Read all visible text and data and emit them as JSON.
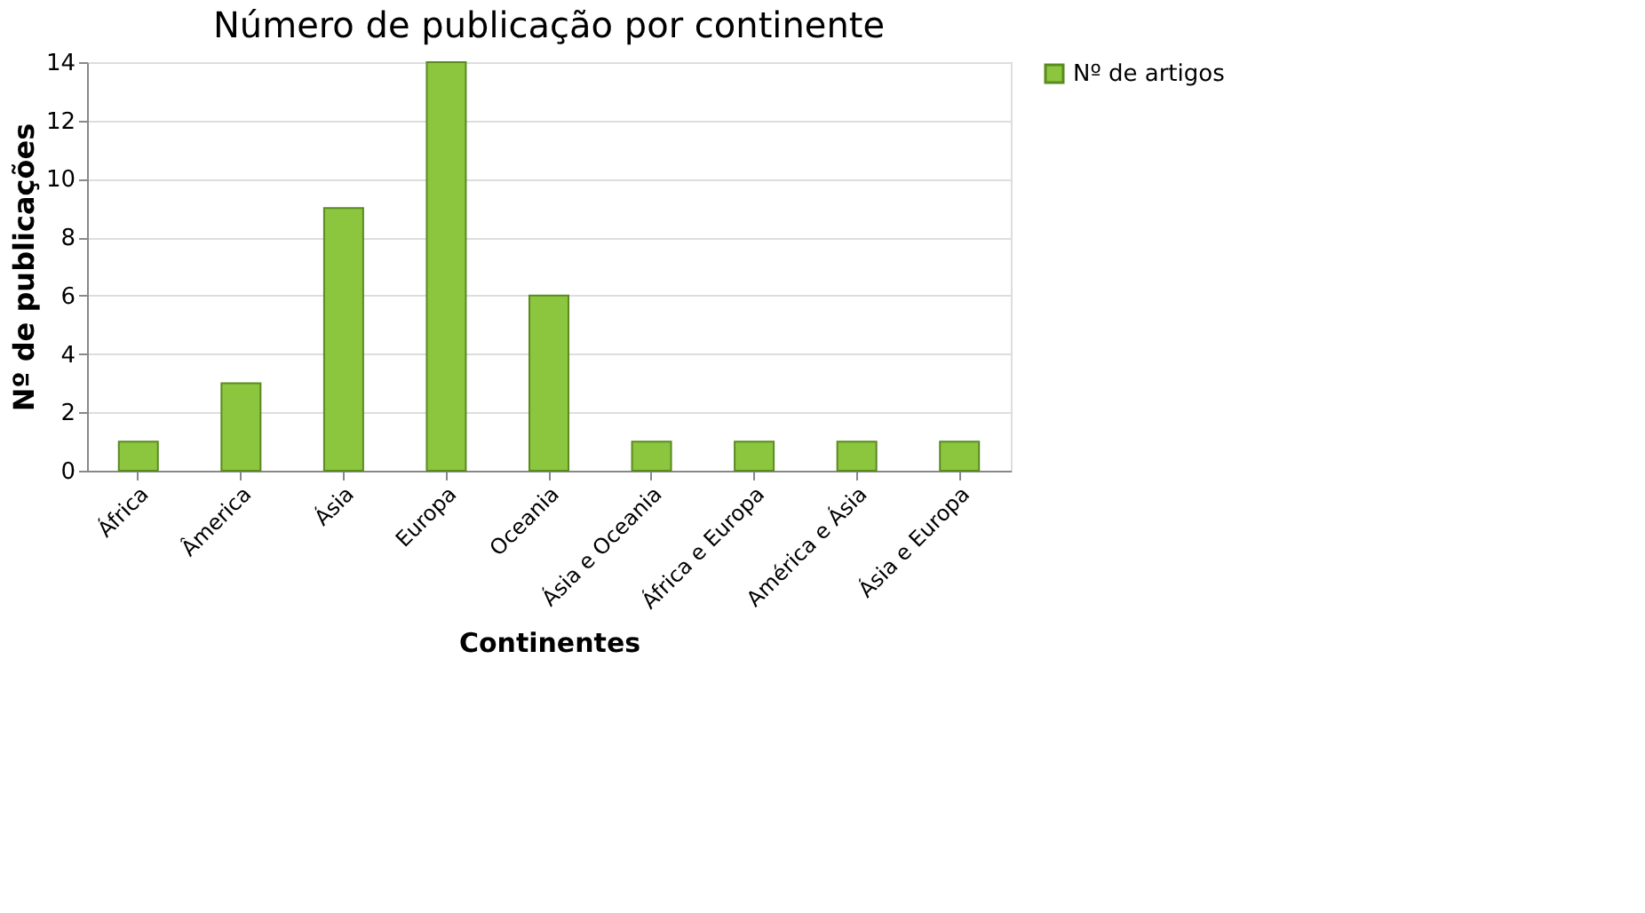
{
  "chart_data": {
    "type": "bar",
    "title": "Número de publicação por continente",
    "xlabel": "Continentes",
    "ylabel": "Nº de publicações",
    "categories": [
      "África",
      "Âmerica",
      "Ásia",
      "Europa",
      "Oceania",
      "Ásia e Oceania",
      "África e Europa",
      "América e Ásia",
      "Ásia e Europa"
    ],
    "series": [
      {
        "name": "Nº de artigos",
        "color": "#8cc63f",
        "values": [
          1,
          3,
          9,
          14,
          6,
          1,
          1,
          1,
          1
        ]
      }
    ],
    "ylim": [
      0,
      14
    ],
    "yticks": [
      0,
      2,
      4,
      6,
      8,
      10,
      12,
      14
    ],
    "grid": "y",
    "legend": "right"
  }
}
